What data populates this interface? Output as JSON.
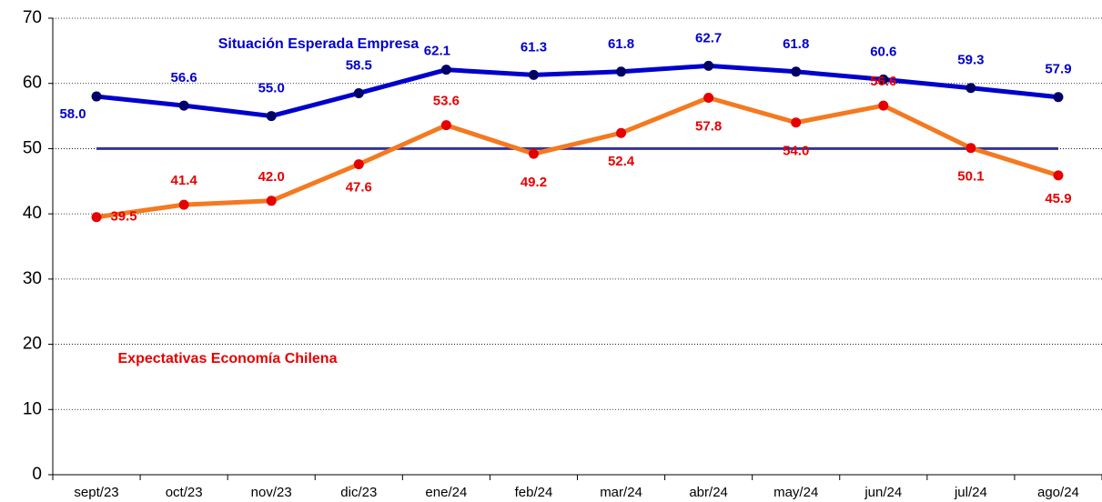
{
  "chart_data": {
    "type": "line",
    "categories": [
      "sept/23",
      "oct/23",
      "nov/23",
      "dic/23",
      "ene/24",
      "feb/24",
      "mar/24",
      "abr/24",
      "may/24",
      "jun/24",
      "jul/24",
      "ago/24"
    ],
    "series": [
      {
        "name": "Situación Esperada Empresa",
        "color": "#0000cc",
        "marker_color": "#000066",
        "label_color": "#0000cc",
        "values": [
          58.0,
          56.6,
          55.0,
          58.5,
          62.1,
          61.3,
          61.8,
          62.7,
          61.8,
          60.6,
          59.3,
          57.9
        ],
        "value_labels": [
          "58.0",
          "56.6",
          "55.0",
          "58.5",
          "62.1",
          "61.3",
          "61.8",
          "62.7",
          "61.8",
          "60.6",
          "59.3",
          "57.9"
        ]
      },
      {
        "name": "Expectativas Economía Chilena",
        "color": "#f47920",
        "marker_color": "#e60000",
        "label_color": "#e60000",
        "values": [
          39.5,
          41.4,
          42.0,
          47.6,
          53.6,
          49.2,
          52.4,
          57.8,
          54.0,
          56.6,
          50.1,
          45.9
        ],
        "value_labels": [
          "39.5",
          "41.4",
          "42.0",
          "47.6",
          "53.6",
          "49.2",
          "52.4",
          "57.8",
          "54.0",
          "56.6",
          "50.1",
          "45.9"
        ]
      }
    ],
    "reference_line": {
      "value": 50,
      "color": "#333399"
    },
    "ylim": [
      0,
      70
    ],
    "yticks": [
      0,
      10,
      20,
      30,
      40,
      50,
      60,
      70
    ],
    "grid": true
  }
}
